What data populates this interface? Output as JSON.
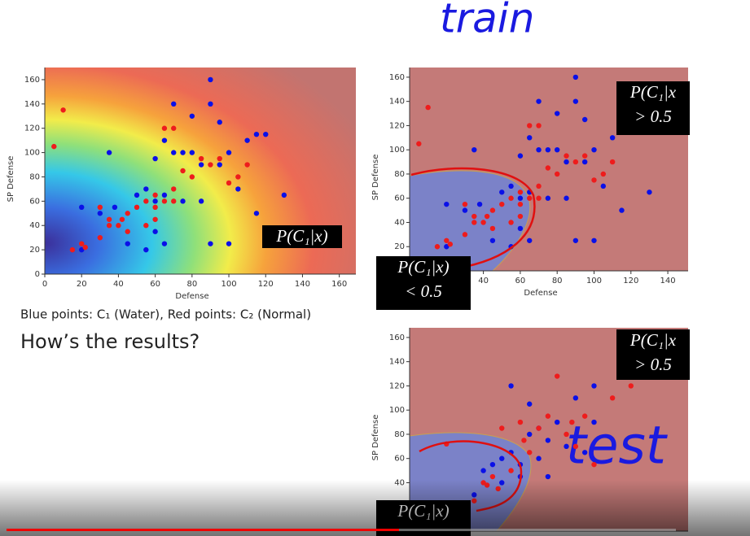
{
  "chart_data": [
    {
      "type": "scatter",
      "xlabel": "Defense",
      "ylabel": "SP Defense",
      "xlim": [
        0,
        169
      ],
      "ylim": [
        0,
        170
      ],
      "xticks": [
        0,
        20,
        40,
        60,
        80,
        100,
        120,
        140,
        160
      ],
      "yticks": [
        0,
        20,
        40,
        60,
        80,
        100,
        120,
        140,
        160
      ],
      "series": [
        {
          "color": "#0a10e8",
          "x": [
            20,
            20,
            30,
            35,
            38,
            45,
            50,
            55,
            55,
            60,
            60,
            60,
            65,
            65,
            70,
            70,
            75,
            75,
            80,
            80,
            85,
            85,
            90,
            90,
            90,
            95,
            100,
            100,
            105,
            110,
            115,
            120,
            130,
            115,
            65,
            95
          ],
          "values": [
            20,
            55,
            50,
            100,
            55,
            25,
            65,
            70,
            20,
            95,
            60,
            35,
            110,
            65,
            140,
            100,
            100,
            60,
            130,
            100,
            90,
            60,
            160,
            140,
            25,
            90,
            100,
            25,
            70,
            110,
            115,
            115,
            65,
            50,
            25,
            125
          ]
        },
        {
          "color": "#ee1c1c",
          "x": [
            5,
            10,
            15,
            20,
            22,
            30,
            30,
            35,
            35,
            40,
            42,
            45,
            50,
            55,
            55,
            60,
            60,
            65,
            65,
            70,
            70,
            75,
            80,
            85,
            90,
            95,
            100,
            105,
            110,
            70,
            60,
            45
          ],
          "values": [
            105,
            135,
            20,
            25,
            22,
            55,
            30,
            45,
            40,
            40,
            45,
            50,
            55,
            60,
            40,
            65,
            55,
            120,
            60,
            120,
            70,
            85,
            80,
            95,
            90,
            95,
            75,
            80,
            90,
            60,
            45,
            35
          ]
        }
      ],
      "labels": [
        [
          "P(C₁|x)"
        ]
      ]
    },
    {
      "type": "scatter",
      "xlabel": "Defense",
      "ylabel": "SP Defense",
      "xlim": [
        0,
        151
      ],
      "ylim": [
        0,
        168
      ],
      "xticks": [
        40,
        60,
        80,
        100,
        120,
        140
      ],
      "yticks": [
        20,
        40,
        60,
        80,
        100,
        120,
        140,
        160
      ],
      "series": [
        {
          "color": "#0a10e8",
          "x": [
            20,
            20,
            30,
            35,
            38,
            45,
            50,
            55,
            55,
            60,
            60,
            60,
            65,
            65,
            70,
            70,
            75,
            75,
            80,
            80,
            85,
            85,
            90,
            90,
            90,
            95,
            100,
            100,
            105,
            110,
            115,
            120,
            130,
            115,
            65,
            95
          ],
          "values": [
            20,
            55,
            50,
            100,
            55,
            25,
            65,
            70,
            20,
            95,
            60,
            35,
            110,
            65,
            140,
            100,
            100,
            60,
            130,
            100,
            90,
            60,
            160,
            140,
            25,
            90,
            100,
            25,
            70,
            110,
            115,
            115,
            65,
            50,
            25,
            125
          ]
        },
        {
          "color": "#ee1c1c",
          "x": [
            5,
            10,
            15,
            20,
            22,
            30,
            30,
            35,
            35,
            40,
            42,
            45,
            50,
            55,
            55,
            60,
            60,
            65,
            65,
            70,
            70,
            75,
            80,
            85,
            90,
            95,
            100,
            105,
            110,
            70,
            60,
            45
          ],
          "values": [
            105,
            135,
            20,
            25,
            22,
            55,
            30,
            45,
            40,
            40,
            45,
            50,
            55,
            60,
            40,
            65,
            55,
            120,
            60,
            120,
            70,
            85,
            80,
            95,
            90,
            95,
            75,
            80,
            90,
            60,
            45,
            35
          ]
        }
      ],
      "labels": [
        [
          "P(C₁|x",
          "> 0.5"
        ],
        [
          "P(C₁|x)",
          "< 0.5"
        ]
      ]
    },
    {
      "type": "scatter",
      "ylabel": "SP Defense",
      "xlim": [
        0,
        151
      ],
      "ylim": [
        0,
        168
      ],
      "yticks": [
        40,
        60,
        80,
        100,
        120,
        140,
        160
      ],
      "series": [
        {
          "color": "#0a10e8",
          "x": [
            40,
            45,
            50,
            55,
            55,
            60,
            60,
            65,
            70,
            75,
            80,
            85,
            90,
            95,
            100,
            100,
            65,
            70,
            75,
            50,
            35
          ],
          "values": [
            50,
            55,
            60,
            65,
            120,
            55,
            45,
            105,
            85,
            75,
            90,
            70,
            110,
            65,
            120,
            90,
            80,
            60,
            45,
            40,
            30
          ]
        },
        {
          "color": "#ee1c1c",
          "x": [
            20,
            35,
            40,
            42,
            45,
            50,
            55,
            60,
            62,
            65,
            70,
            75,
            80,
            85,
            90,
            95,
            100,
            110,
            120,
            88,
            48
          ],
          "values": [
            72,
            25,
            40,
            38,
            45,
            85,
            50,
            90,
            75,
            65,
            85,
            95,
            128,
            80,
            70,
            95,
            55,
            110,
            120,
            90,
            35
          ]
        }
      ],
      "labels": [
        [
          "P(C₁|x",
          "> 0.5"
        ],
        [
          "P(C₁|x)"
        ]
      ]
    }
  ],
  "caption": "Blue points: C₁ (Water), Red points: C₂ (Normal)",
  "question": "How’s the results?",
  "handwriting": {
    "top": "train",
    "right": "test"
  }
}
